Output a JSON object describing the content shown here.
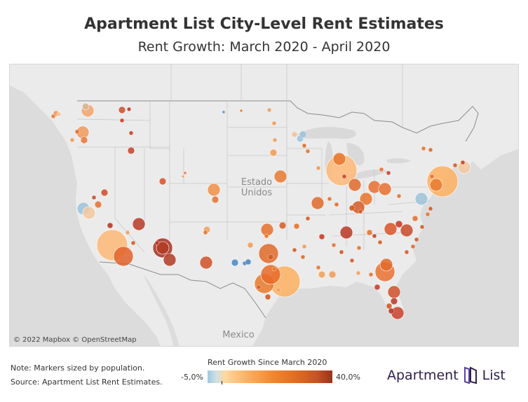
{
  "title": "Apartment List City-Level Rent Estimates",
  "subtitle": "Rent Growth: March 2020 - April 2020",
  "map": {
    "labels": {
      "country_us_line1": "Estado",
      "country_us_line2": "Unidos",
      "country_mexico": "Mexico"
    },
    "attribution": "© 2022 Mapbox © OpenStreetMap",
    "land_color": "#ebebeb",
    "water_color": "#d9d9d9",
    "markers": [
      {
        "city": "Seattle",
        "color": "#f3a36a",
        "size": "m"
      },
      {
        "city": "Seattle area",
        "color": "#d4b896",
        "size": "s"
      },
      {
        "city": "Spokane",
        "color": "#c8502a",
        "size": "s"
      },
      {
        "city": "Idaho",
        "color": "#b33020",
        "size": "xs"
      },
      {
        "city": "Portland",
        "color": "#f09a5a",
        "size": "m"
      },
      {
        "city": "Salem",
        "color": "#e8763a",
        "size": "s"
      },
      {
        "city": "Boise",
        "color": "#c8402a",
        "size": "s"
      },
      {
        "city": "Reno",
        "color": "#d04a28",
        "size": "s"
      },
      {
        "city": "San Francisco",
        "color": "#9cc3d8",
        "size": "m"
      },
      {
        "city": "San Jose",
        "color": "#f3c8a0",
        "size": "m"
      },
      {
        "city": "Sacramento",
        "color": "#e86f30",
        "size": "s"
      },
      {
        "city": "Fresno",
        "color": "#b83825",
        "size": "m"
      },
      {
        "city": "Los Angeles",
        "color": "#fdb877",
        "size": "xl"
      },
      {
        "city": "San Diego",
        "color": "#e0622a",
        "size": "l"
      },
      {
        "city": "Las Vegas",
        "color": "#b33c25",
        "size": "m"
      },
      {
        "city": "Phoenix",
        "color": "#a83020",
        "size": "l"
      },
      {
        "city": "Tucson",
        "color": "#b33a22",
        "size": "m"
      },
      {
        "city": "Salt Lake City",
        "color": "#d85028",
        "size": "s"
      },
      {
        "city": "Denver",
        "color": "#f09048",
        "size": "m"
      },
      {
        "city": "Colorado Springs",
        "color": "#e87030",
        "size": "s"
      },
      {
        "city": "Albuquerque",
        "color": "#f0a060",
        "size": "s"
      },
      {
        "city": "El Paso",
        "color": "#d05028",
        "size": "m"
      },
      {
        "city": "Dallas",
        "color": "#e06a28",
        "size": "l"
      },
      {
        "city": "Austin",
        "color": "#e87a2c",
        "size": "l"
      },
      {
        "city": "Houston",
        "color": "#fdb060",
        "size": "xl"
      },
      {
        "city": "San Antonio",
        "color": "#e86a28",
        "size": "l"
      },
      {
        "city": "Lubbock",
        "color": "#4a86c8",
        "size": "s"
      },
      {
        "city": "Oklahoma City",
        "color": "#e8702a",
        "size": "m"
      },
      {
        "city": "Tulsa",
        "color": "#d45a25",
        "size": "s"
      },
      {
        "city": "Kansas City",
        "color": "#e87a32",
        "size": "m"
      },
      {
        "city": "Omaha",
        "color": "#f09a50",
        "size": "s"
      },
      {
        "city": "Minneapolis",
        "color": "#9cc3d8",
        "size": "s"
      },
      {
        "city": "Chicago",
        "color": "#fdb877",
        "size": "xl"
      },
      {
        "city": "Milwaukee",
        "color": "#e8742c",
        "size": "m"
      },
      {
        "city": "Detroit",
        "color": "#e87030",
        "size": "m"
      },
      {
        "city": "St. Louis",
        "color": "#e06a28",
        "size": "m"
      },
      {
        "city": "Indianapolis",
        "color": "#e06a2a",
        "size": "m"
      },
      {
        "city": "Nashville",
        "color": "#b83825",
        "size": "m"
      },
      {
        "city": "Atlanta",
        "color": "#e87230",
        "size": "l"
      },
      {
        "city": "New Orleans",
        "color": "#f0a058",
        "size": "s"
      },
      {
        "city": "Orlando",
        "color": "#d05028",
        "size": "m"
      },
      {
        "city": "Tampa",
        "color": "#b83828",
        "size": "s"
      },
      {
        "city": "Miami",
        "color": "#c8402a",
        "size": "m"
      },
      {
        "city": "Jacksonville",
        "color": "#e06a2c",
        "size": "m"
      },
      {
        "city": "Charlotte",
        "color": "#d85428",
        "size": "m"
      },
      {
        "city": "Raleigh",
        "color": "#c84a28",
        "size": "m"
      },
      {
        "city": "Washington DC",
        "color": "#9cc3d8",
        "size": "m"
      },
      {
        "city": "Philadelphia",
        "color": "#e87a30",
        "size": "m"
      },
      {
        "city": "New York",
        "color": "#fdb060",
        "size": "xl"
      },
      {
        "city": "Boston",
        "color": "#f3c8a0",
        "size": "m"
      },
      {
        "city": "Pittsburgh",
        "color": "#e87030",
        "size": "m"
      },
      {
        "city": "Columbus",
        "color": "#e8742c",
        "size": "m"
      },
      {
        "city": "Cincinnati",
        "color": "#d45a25",
        "size": "m"
      }
    ]
  },
  "notes": {
    "line1": "Note: Markers sized by population.",
    "line2": "Source: Apartment List Rent Estimates."
  },
  "legend": {
    "title": "Rent Growth Since March 2020",
    "min_label": "-5,0%",
    "max_label": "40,0%"
  },
  "brand": {
    "word1": "Apartment",
    "word2": "List",
    "color": "#2e1f4a",
    "accent": "#5b3fa0"
  }
}
